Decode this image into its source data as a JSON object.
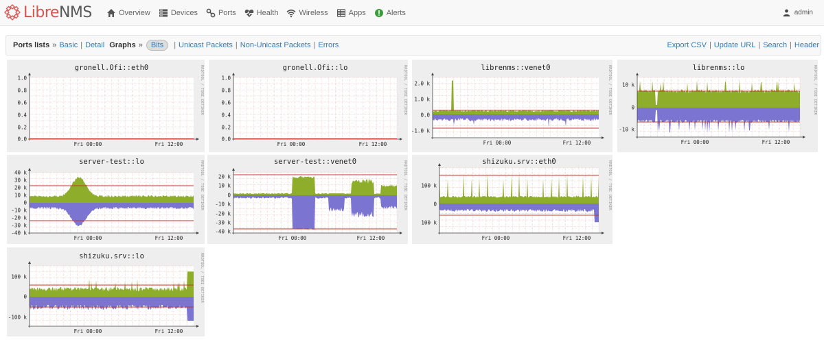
{
  "brand": {
    "part1": "Libre",
    "part2": "NMS"
  },
  "nav": [
    {
      "label": "Overview",
      "icon": "home-icon"
    },
    {
      "label": "Devices",
      "icon": "server-icon"
    },
    {
      "label": "Ports",
      "icon": "link-icon"
    },
    {
      "label": "Health",
      "icon": "heartbeat-icon"
    },
    {
      "label": "Wireless",
      "icon": "wifi-icon"
    },
    {
      "label": "Apps",
      "icon": "apps-icon"
    },
    {
      "label": "Alerts",
      "icon": "alert-icon"
    }
  ],
  "user": {
    "name": "admin",
    "icon": "user-icon"
  },
  "toolbar": {
    "ports_lists": "Ports lists",
    "arrow": "»",
    "basic": "Basic",
    "sep": "|",
    "detail": "Detail",
    "graphs": "Graphs",
    "bits": "Bits",
    "unicast": "Unicast Packets",
    "nonunicast": "Non-Unicast Packets",
    "errors": "Errors",
    "export_csv": "Export CSV",
    "update_url": "Update URL",
    "search": "Search",
    "header": "Header"
  },
  "colors": {
    "in_fill": "#8dad2b",
    "out_fill": "#7b74d0",
    "max_line": "#c0392b",
    "grid": "#f3b9b9",
    "tile_bg": "#eeeeee",
    "plot_bg": "#ffffff",
    "link": "#337ab7",
    "brand_red": "#d9534f"
  },
  "watermark": "RRDTOOL / TOBI OETIKER",
  "graphs": [
    {
      "title": "gronell.Ofi::eth0",
      "type": "flat",
      "yticks": [
        "1.0",
        "0.8",
        "0.6",
        "0.4",
        "0.2",
        "0.0"
      ],
      "xticks": [
        "Fri 00:00",
        "Fri 12:00"
      ]
    },
    {
      "title": "gronell.Ofi::lo",
      "type": "flat",
      "yticks": [
        "1.0",
        "0.8",
        "0.6",
        "0.4",
        "0.2",
        "0.0"
      ],
      "xticks": [
        "Fri 00:00",
        "Fri 12:00"
      ]
    },
    {
      "title": "librenms::venet0",
      "type": "traffic",
      "yticks": [
        "2.0 k",
        "1.0 k",
        "0.0",
        "-1.0 k"
      ],
      "xticks": [
        "Fri 00:00",
        "Fri 12:00"
      ]
    },
    {
      "title": "librenms::lo",
      "type": "traffic",
      "yticks": [
        "10 k",
        "0",
        "-10 k"
      ],
      "xticks": [
        "Fri 00:00",
        "Fri 12:00"
      ]
    },
    {
      "title": "server-test::lo",
      "type": "traffic",
      "yticks": [
        "40 k",
        "30 k",
        "20 k",
        "10 k",
        "0",
        "-10 k",
        "-20 k",
        "-30 k",
        "-40 k"
      ],
      "xticks": [
        "Fri 00:00",
        "Fri 12:00"
      ]
    },
    {
      "title": "server-test::venet0",
      "type": "traffic",
      "yticks": [
        "20 k",
        "10 k",
        "0",
        "-10 k",
        "-20 k",
        "-30 k",
        "-40 k"
      ],
      "xticks": [
        "Fri 00:00",
        "Fri 12:00"
      ]
    },
    {
      "title": "shizuku.srv::eth0",
      "type": "traffic",
      "yticks": [
        "100 k",
        "0",
        "100 k"
      ],
      "xticks": [
        "Fri 00:00",
        "Fri 12:00"
      ]
    },
    {
      "title": "shizuku.srv::lo",
      "type": "traffic",
      "yticks": [
        "100 k",
        "0",
        "-100 k"
      ],
      "xticks": [
        "Fri 00:00",
        "Fri 12:00"
      ]
    }
  ]
}
